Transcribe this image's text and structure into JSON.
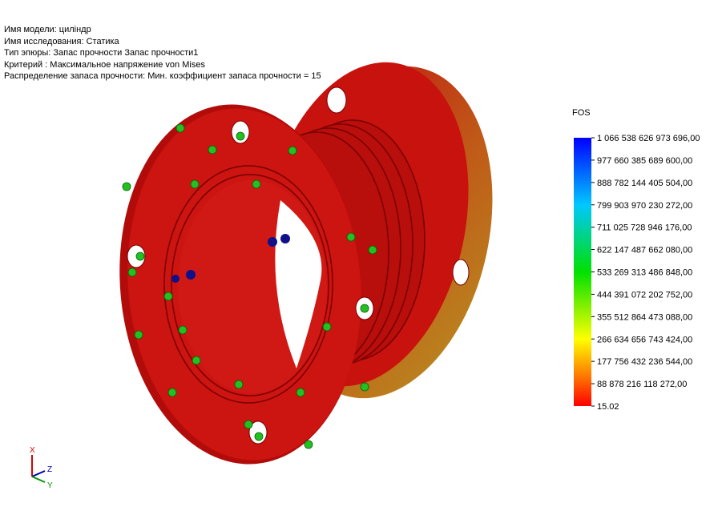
{
  "info": [
    "Имя модели: цилiндр",
    "Имя  исследования: Статика",
    "Тип эпюры: Запас прочности Запас прочности1",
    "Критерий : Максимальное напряжение von Mises",
    "Распределение запаса прочности: Мин. коэффициент запаса прочности = 15"
  ],
  "legend": {
    "title": "FOS",
    "labels": [
      "1 066 538 626 973 696,00",
      "977 660 385 689 600,00",
      "888 782 144 405 504,00",
      "799 903 970 230 272,00",
      "711 025 728 946 176,00",
      "622 147 487 662 080,00",
      "533 269 313 486 848,00",
      "444 391 072 202 752,00",
      "355 512 864 473 088,00",
      "266 634 656 743 424,00",
      "177 756 432 236 544,00",
      "88 878 216 118 272,00",
      "15.02"
    ]
  },
  "triad": {
    "x": "X",
    "y": "Y",
    "z": "Z"
  }
}
